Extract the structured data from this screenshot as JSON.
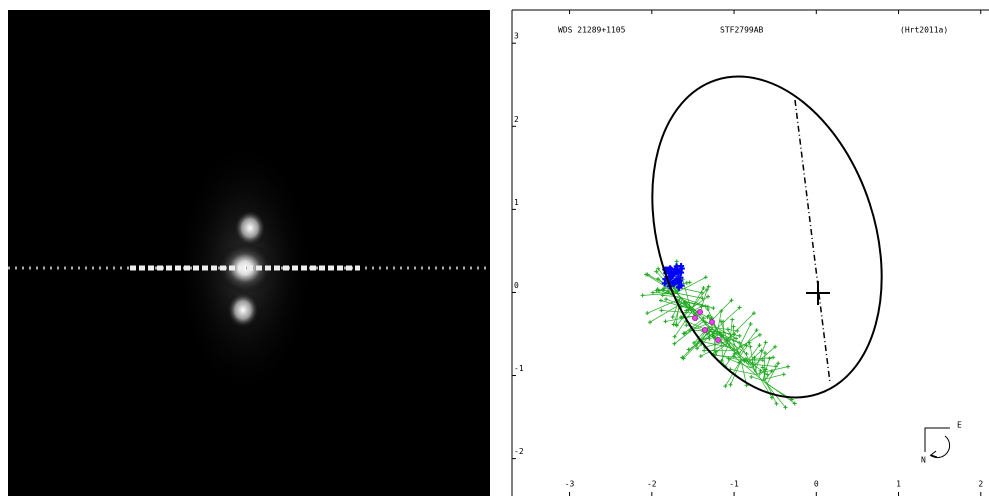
{
  "header": [
    "WDS 21289+1105",
    "STF2799AB",
    "(Hrt2011a)"
  ],
  "orbit_plot": {
    "xlim": [
      -3.7,
      2.1
    ],
    "ylim": [
      -2.45,
      3.4
    ],
    "xticks": [
      -3,
      -2,
      -1,
      0,
      1,
      2
    ],
    "yticks": [
      -2,
      -1,
      0,
      1,
      2,
      3
    ]
  },
  "compass": {
    "east": "E",
    "north": "N"
  }
}
